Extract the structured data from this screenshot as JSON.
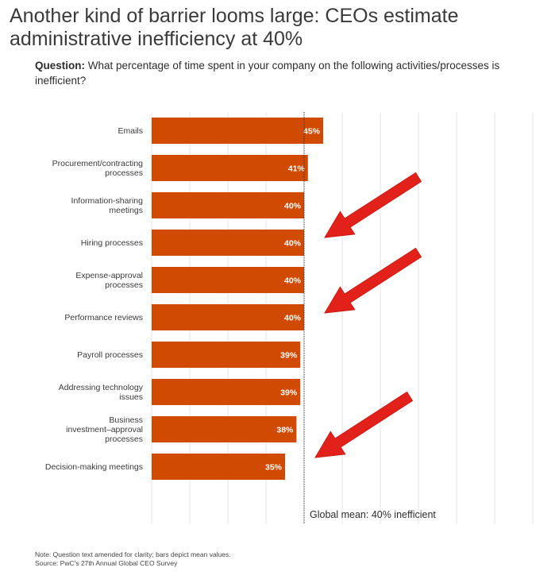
{
  "header": {
    "title_line1": "Another kind of barrier looms large: CEOs estimate",
    "title_line2": "administrative inefficiency at 40%",
    "question_label": "Question:",
    "question_text": " What percentage of time spent in your company on the following activities/processes is inefficient?"
  },
  "chart_data": {
    "type": "bar",
    "orientation": "horizontal",
    "categories": [
      [
        "Emails"
      ],
      [
        "Procurement/contracting",
        "processes"
      ],
      [
        "Information-sharing",
        "meetings"
      ],
      [
        "Hiring processes"
      ],
      [
        "Expense-approval",
        "processes"
      ],
      [
        "Performance reviews"
      ],
      [
        "Payroll processes"
      ],
      [
        "Addressing technology",
        "issues"
      ],
      [
        "Business",
        "investment–approval",
        "processes"
      ],
      [
        "Decision-making meetings"
      ]
    ],
    "values": [
      45,
      41,
      40,
      40,
      40,
      40,
      39,
      39,
      38,
      35
    ],
    "value_labels": [
      "45%",
      "41%",
      "40%",
      "40%",
      "40%",
      "40%",
      "39%",
      "39%",
      "38%",
      "35%"
    ],
    "xlim": [
      0,
      100
    ],
    "grid": true,
    "reference_line": {
      "value": 40,
      "label": "Global mean: 40% inefficient"
    },
    "bar_color": "#d04a02",
    "arrow_color": "#e3211b",
    "arrows_point_to": [
      "Information-sharing meetings",
      "Performance reviews",
      "Decision-making meetings"
    ]
  },
  "footer": {
    "note": "Note: Question text amended for clarity; bars depict mean values.",
    "source": "Source: PwC’s 27th Annual Global CEO Survey"
  }
}
